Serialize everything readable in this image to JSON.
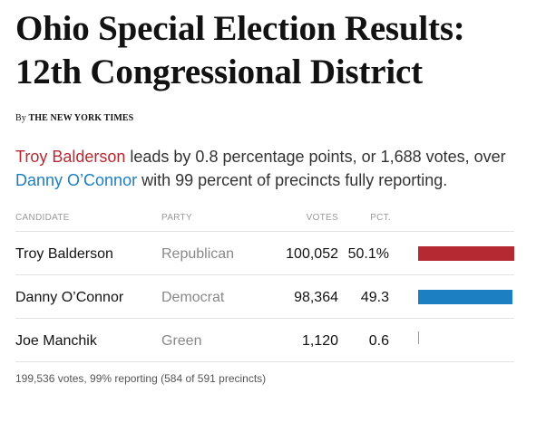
{
  "headline": {
    "line1": "Ohio Special Election Results:",
    "line2": "12th Congressional District"
  },
  "byline": {
    "prefix": "By",
    "publisher": "THE NEW YORK TIMES"
  },
  "summary": {
    "leader": "Troy Balderson",
    "text1": " leads by 0.8 percentage points, or 1,688 votes, over ",
    "opponent": "Danny O’Connor",
    "text2": " with 99 percent of precincts fully reporting."
  },
  "colors": {
    "republican": "#b52932",
    "democrat": "#1b7fc2",
    "green": "#999999"
  },
  "table": {
    "headers": {
      "candidate": "CANDIDATE",
      "party": "PARTY",
      "votes": "VOTES",
      "pct": "PCT."
    },
    "rows": [
      {
        "candidate": "Troy Balderson",
        "party": "Republican",
        "votes": "100,052",
        "pct": "50.1%",
        "share": 0.501,
        "color": "#b52932"
      },
      {
        "candidate": "Danny O’Connor",
        "party": "Democrat",
        "votes": "98,364",
        "pct": "49.3",
        "share": 0.493,
        "color": "#1b7fc2"
      },
      {
        "candidate": "Joe Manchik",
        "party": "Green",
        "votes": "1,120",
        "pct": "0.6",
        "share": 0.006,
        "color": "#999999"
      }
    ]
  },
  "footer": "199,536 votes, 99% reporting (584 of 591 precincts)"
}
